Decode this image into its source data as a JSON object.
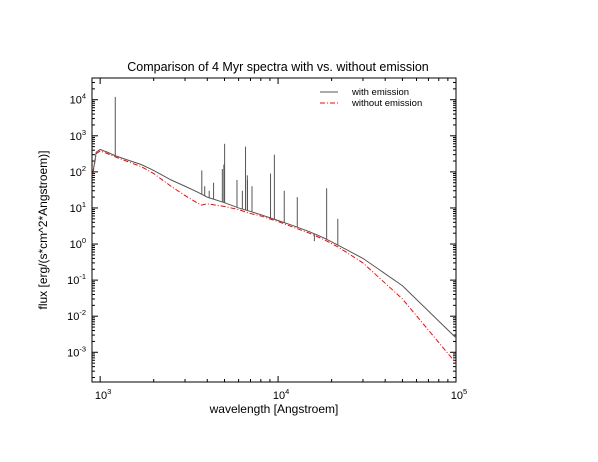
{
  "chart_data": {
    "type": "line",
    "title": "Comparison of 4 Myr spectra with vs. without emission",
    "xlabel": "wavelength [Angstroem]",
    "ylabel": "flux [erg/(s*cm^2*Angstroem)]",
    "xscale": "log",
    "yscale": "log",
    "xlim": [
      900,
      100000
    ],
    "ylim": [
      0.00015,
      40000
    ],
    "grid": false,
    "legend_position": "top-right",
    "x_ticks": [
      {
        "value": 1000,
        "base": "10",
        "exp": "3"
      },
      {
        "value": 10000,
        "base": "10",
        "exp": "4"
      },
      {
        "value": 100000,
        "base": "10",
        "exp": "5"
      }
    ],
    "y_ticks": [
      {
        "value": 10000,
        "base": "10",
        "exp": "4"
      },
      {
        "value": 1000,
        "base": "10",
        "exp": "3"
      },
      {
        "value": 100,
        "base": "10",
        "exp": "2"
      },
      {
        "value": 10,
        "base": "10",
        "exp": "1"
      },
      {
        "value": 1,
        "base": "10",
        "exp": "0"
      },
      {
        "value": 0.1,
        "base": "10",
        "exp": "-1"
      },
      {
        "value": 0.01,
        "base": "10",
        "exp": "-2"
      },
      {
        "value": 0.001,
        "base": "10",
        "exp": "-3"
      }
    ],
    "series": [
      {
        "name": "with emission",
        "color": "#555555",
        "style": "solid",
        "continuum": [
          [
            912,
            100
          ],
          [
            950,
            350
          ],
          [
            1000,
            420
          ],
          [
            1100,
            350
          ],
          [
            1216,
            280
          ],
          [
            1400,
            220
          ],
          [
            1700,
            160
          ],
          [
            2000,
            110
          ],
          [
            2500,
            60
          ],
          [
            3000,
            40
          ],
          [
            3500,
            28
          ],
          [
            4000,
            20
          ],
          [
            5000,
            14
          ],
          [
            6000,
            10
          ],
          [
            7000,
            8
          ],
          [
            8000,
            6.5
          ],
          [
            10000,
            4.5
          ],
          [
            12000,
            3.3
          ],
          [
            15000,
            2.2
          ],
          [
            18000,
            1.5
          ],
          [
            22000,
            0.9
          ],
          [
            30000,
            0.4
          ],
          [
            50000,
            0.07
          ],
          [
            100000,
            0.0025
          ]
        ],
        "lines": [
          [
            1216,
            12000
          ],
          [
            3727,
            110
          ],
          [
            3869,
            40
          ],
          [
            4101,
            30
          ],
          [
            4340,
            50
          ],
          [
            4861,
            120
          ],
          [
            4959,
            160
          ],
          [
            5007,
            600
          ],
          [
            5876,
            60
          ],
          [
            6300,
            30
          ],
          [
            6563,
            500
          ],
          [
            6717,
            80
          ],
          [
            6731,
            60
          ],
          [
            7135,
            40
          ],
          [
            9069,
            90
          ],
          [
            9532,
            300
          ],
          [
            10830,
            30
          ],
          [
            12820,
            20
          ],
          [
            16000,
            1.2
          ],
          [
            18751,
            35
          ],
          [
            21660,
            5
          ]
        ]
      },
      {
        "name": "without emission",
        "color": "#ff0000",
        "style": "dashdot",
        "continuum": [
          [
            912,
            90
          ],
          [
            950,
            320
          ],
          [
            1000,
            380
          ],
          [
            1100,
            320
          ],
          [
            1216,
            260
          ],
          [
            1400,
            200
          ],
          [
            1700,
            140
          ],
          [
            2000,
            90
          ],
          [
            2500,
            40
          ],
          [
            3000,
            22
          ],
          [
            3500,
            14
          ],
          [
            3700,
            12
          ],
          [
            4000,
            13
          ],
          [
            5000,
            11
          ],
          [
            6000,
            9
          ],
          [
            7000,
            7
          ],
          [
            8000,
            6
          ],
          [
            10000,
            4.2
          ],
          [
            12000,
            3.0
          ],
          [
            15000,
            2.0
          ],
          [
            18000,
            1.35
          ],
          [
            22000,
            0.8
          ],
          [
            30000,
            0.3
          ],
          [
            50000,
            0.03
          ],
          [
            100000,
            0.0005
          ]
        ]
      }
    ]
  }
}
